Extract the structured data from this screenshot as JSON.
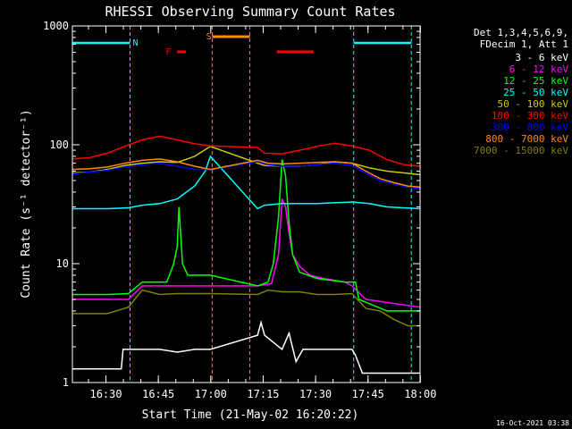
{
  "chart_data": {
    "type": "line",
    "title": "RHESSI Observing Summary Count Rates",
    "xlabel": "Start Time (21-May-02 16:20:22)",
    "ylabel": "Count Rate (s⁻¹ detector⁻¹)",
    "yscale": "log",
    "ylim": [
      1,
      1000
    ],
    "x_unit": "minutes after 16:20:22",
    "xlim": [
      0,
      99.5
    ],
    "x_tick_labels": [
      "16:30",
      "16:45",
      "17:00",
      "17:15",
      "17:30",
      "17:45",
      "18:00"
    ],
    "x_tick_minutes": [
      9.6,
      24.6,
      39.6,
      54.6,
      69.6,
      84.6,
      99.6
    ],
    "y_tick_labels": [
      "1",
      "10",
      "100",
      "1000"
    ],
    "y_tick_values": [
      1,
      10,
      100,
      1000
    ],
    "legend_title": [
      "Det 1,3,4,5,6,9,",
      "FDecim 1, Att 1"
    ],
    "legend_position": "top-right outside",
    "timestamp": "16-Oct-2021 03:38",
    "annotations": [
      {
        "text": "N",
        "color": "#00ffff",
        "x_min": 16.5
      },
      {
        "text": "S",
        "color": "#ff8c00",
        "x_min": 37.5
      },
      {
        "text": "F",
        "color": "#ff0000",
        "x_min": 27.5
      }
    ],
    "night_intervals": [
      [
        0,
        16.5
      ],
      [
        80.5,
        97
      ]
    ],
    "saa_interval": [
      40,
      50.8
    ],
    "flare_intervals": [
      [
        30,
        32.5
      ],
      [
        58.5,
        69
      ]
    ],
    "series": [
      {
        "name": "3 - 6 keV",
        "color": "#ffffff",
        "points": [
          [
            0,
            1.3
          ],
          [
            14,
            1.3
          ],
          [
            14.5,
            1.9
          ],
          [
            25,
            1.9
          ],
          [
            30,
            1.8
          ],
          [
            35,
            1.9
          ],
          [
            39.5,
            1.9
          ],
          [
            53,
            2.5
          ],
          [
            54,
            3.2
          ],
          [
            55,
            2.5
          ],
          [
            60,
            1.9
          ],
          [
            62,
            2.6
          ],
          [
            64,
            1.5
          ],
          [
            66,
            1.9
          ],
          [
            70,
            1.9
          ],
          [
            75,
            1.9
          ],
          [
            80,
            1.9
          ],
          [
            81,
            1.7
          ],
          [
            83,
            1.2
          ],
          [
            99.5,
            1.2
          ]
        ]
      },
      {
        "name": "6 - 12 keV",
        "color": "#ff00ff",
        "points": [
          [
            0,
            5
          ],
          [
            10,
            5
          ],
          [
            16,
            5
          ],
          [
            20,
            6.5
          ],
          [
            30,
            6.5
          ],
          [
            35,
            6.5
          ],
          [
            39.5,
            6.5
          ],
          [
            53,
            6.5
          ],
          [
            57,
            6.8
          ],
          [
            59,
            12
          ],
          [
            60,
            35
          ],
          [
            61,
            30
          ],
          [
            62,
            18
          ],
          [
            63,
            12
          ],
          [
            65,
            9.5
          ],
          [
            68,
            8
          ],
          [
            72,
            7.5
          ],
          [
            78,
            7
          ],
          [
            80,
            6.5
          ],
          [
            84,
            5
          ],
          [
            99.5,
            4.3
          ]
        ]
      },
      {
        "name": "12 - 25 keV",
        "color": "#00ff00",
        "points": [
          [
            0,
            5.5
          ],
          [
            10,
            5.5
          ],
          [
            16,
            5.6
          ],
          [
            20,
            7
          ],
          [
            27,
            7
          ],
          [
            29,
            10
          ],
          [
            30,
            14
          ],
          [
            30.5,
            30
          ],
          [
            31.5,
            10
          ],
          [
            33,
            8
          ],
          [
            39.5,
            8
          ],
          [
            53,
            6.5
          ],
          [
            56,
            7
          ],
          [
            57.5,
            10
          ],
          [
            59,
            25
          ],
          [
            60,
            75
          ],
          [
            61,
            55
          ],
          [
            62,
            22
          ],
          [
            63,
            12
          ],
          [
            65,
            8.5
          ],
          [
            70,
            7.5
          ],
          [
            78,
            7
          ],
          [
            81,
            7
          ],
          [
            82,
            5
          ],
          [
            90,
            4
          ],
          [
            99.5,
            4
          ]
        ]
      },
      {
        "name": "25 - 50 keV",
        "color": "#00ffff",
        "points": [
          [
            0,
            29
          ],
          [
            10,
            29
          ],
          [
            16,
            29.5
          ],
          [
            20,
            31
          ],
          [
            25,
            32
          ],
          [
            30,
            35
          ],
          [
            35,
            45
          ],
          [
            38,
            60
          ],
          [
            39.5,
            80
          ],
          [
            53,
            29
          ],
          [
            55,
            31
          ],
          [
            60,
            32
          ],
          [
            70,
            32
          ],
          [
            80,
            33
          ],
          [
            85,
            32
          ],
          [
            90,
            30
          ],
          [
            99.5,
            29
          ]
        ]
      },
      {
        "name": "50 - 100 keV",
        "color": "#cccc00",
        "points": [
          [
            0,
            58
          ],
          [
            5,
            59
          ],
          [
            10,
            62
          ],
          [
            15,
            67
          ],
          [
            20,
            70
          ],
          [
            25,
            72
          ],
          [
            30,
            71
          ],
          [
            35,
            80
          ],
          [
            39.5,
            97
          ],
          [
            53,
            70
          ],
          [
            55,
            67
          ],
          [
            60,
            66
          ],
          [
            65,
            66
          ],
          [
            70,
            68
          ],
          [
            75,
            72
          ],
          [
            80,
            70
          ],
          [
            85,
            64
          ],
          [
            90,
            60
          ],
          [
            95,
            58
          ],
          [
            99.5,
            56
          ]
        ]
      },
      {
        "name": "100 - 300 keV",
        "color": "#ff0000",
        "points": [
          [
            0,
            76
          ],
          [
            5,
            78
          ],
          [
            10,
            85
          ],
          [
            15,
            97
          ],
          [
            20,
            110
          ],
          [
            25,
            118
          ],
          [
            30,
            110
          ],
          [
            35,
            102
          ],
          [
            39.5,
            98
          ],
          [
            53,
            95
          ],
          [
            55,
            85
          ],
          [
            60,
            84
          ],
          [
            65,
            90
          ],
          [
            70,
            97
          ],
          [
            75,
            103
          ],
          [
            80,
            98
          ],
          [
            85,
            90
          ],
          [
            90,
            75
          ],
          [
            95,
            68
          ],
          [
            99.5,
            66
          ]
        ]
      },
      {
        "name": "300 - 800 keV",
        "color": "#0000ff",
        "points": [
          [
            0,
            57
          ],
          [
            5,
            59
          ],
          [
            10,
            61
          ],
          [
            15,
            65
          ],
          [
            20,
            68
          ],
          [
            25,
            70
          ],
          [
            30,
            66
          ],
          [
            35,
            62
          ],
          [
            39.5,
            62
          ],
          [
            53,
            72
          ],
          [
            56,
            68
          ],
          [
            60,
            66
          ],
          [
            65,
            66
          ],
          [
            70,
            68
          ],
          [
            75,
            70
          ],
          [
            80,
            67
          ],
          [
            84,
            58
          ],
          [
            88,
            50
          ],
          [
            92,
            47
          ],
          [
            96,
            44
          ],
          [
            99.5,
            43
          ]
        ]
      },
      {
        "name": "800 - 7000 keV",
        "color": "#ff8c00",
        "points": [
          [
            0,
            62
          ],
          [
            5,
            63
          ],
          [
            10,
            65
          ],
          [
            15,
            70
          ],
          [
            20,
            74
          ],
          [
            25,
            76
          ],
          [
            30,
            72
          ],
          [
            35,
            66
          ],
          [
            39.5,
            62
          ],
          [
            53,
            74
          ],
          [
            56,
            70
          ],
          [
            60,
            69
          ],
          [
            65,
            70
          ],
          [
            70,
            71
          ],
          [
            75,
            72
          ],
          [
            80,
            70
          ],
          [
            84,
            60
          ],
          [
            88,
            52
          ],
          [
            92,
            48
          ],
          [
            96,
            45
          ],
          [
            99.5,
            44
          ]
        ]
      },
      {
        "name": "7000 - 15000 keV",
        "color": "#808000",
        "points": [
          [
            0,
            3.8
          ],
          [
            10,
            3.8
          ],
          [
            16,
            4.3
          ],
          [
            20,
            6
          ],
          [
            25,
            5.5
          ],
          [
            30,
            5.6
          ],
          [
            35,
            5.6
          ],
          [
            39.5,
            5.6
          ],
          [
            53,
            5.5
          ],
          [
            56,
            6
          ],
          [
            60,
            5.8
          ],
          [
            65,
            5.8
          ],
          [
            70,
            5.5
          ],
          [
            75,
            5.5
          ],
          [
            80,
            5.6
          ],
          [
            84,
            4.2
          ],
          [
            88,
            4
          ],
          [
            92,
            3.4
          ],
          [
            96,
            3
          ],
          [
            99.5,
            3
          ]
        ]
      }
    ]
  }
}
